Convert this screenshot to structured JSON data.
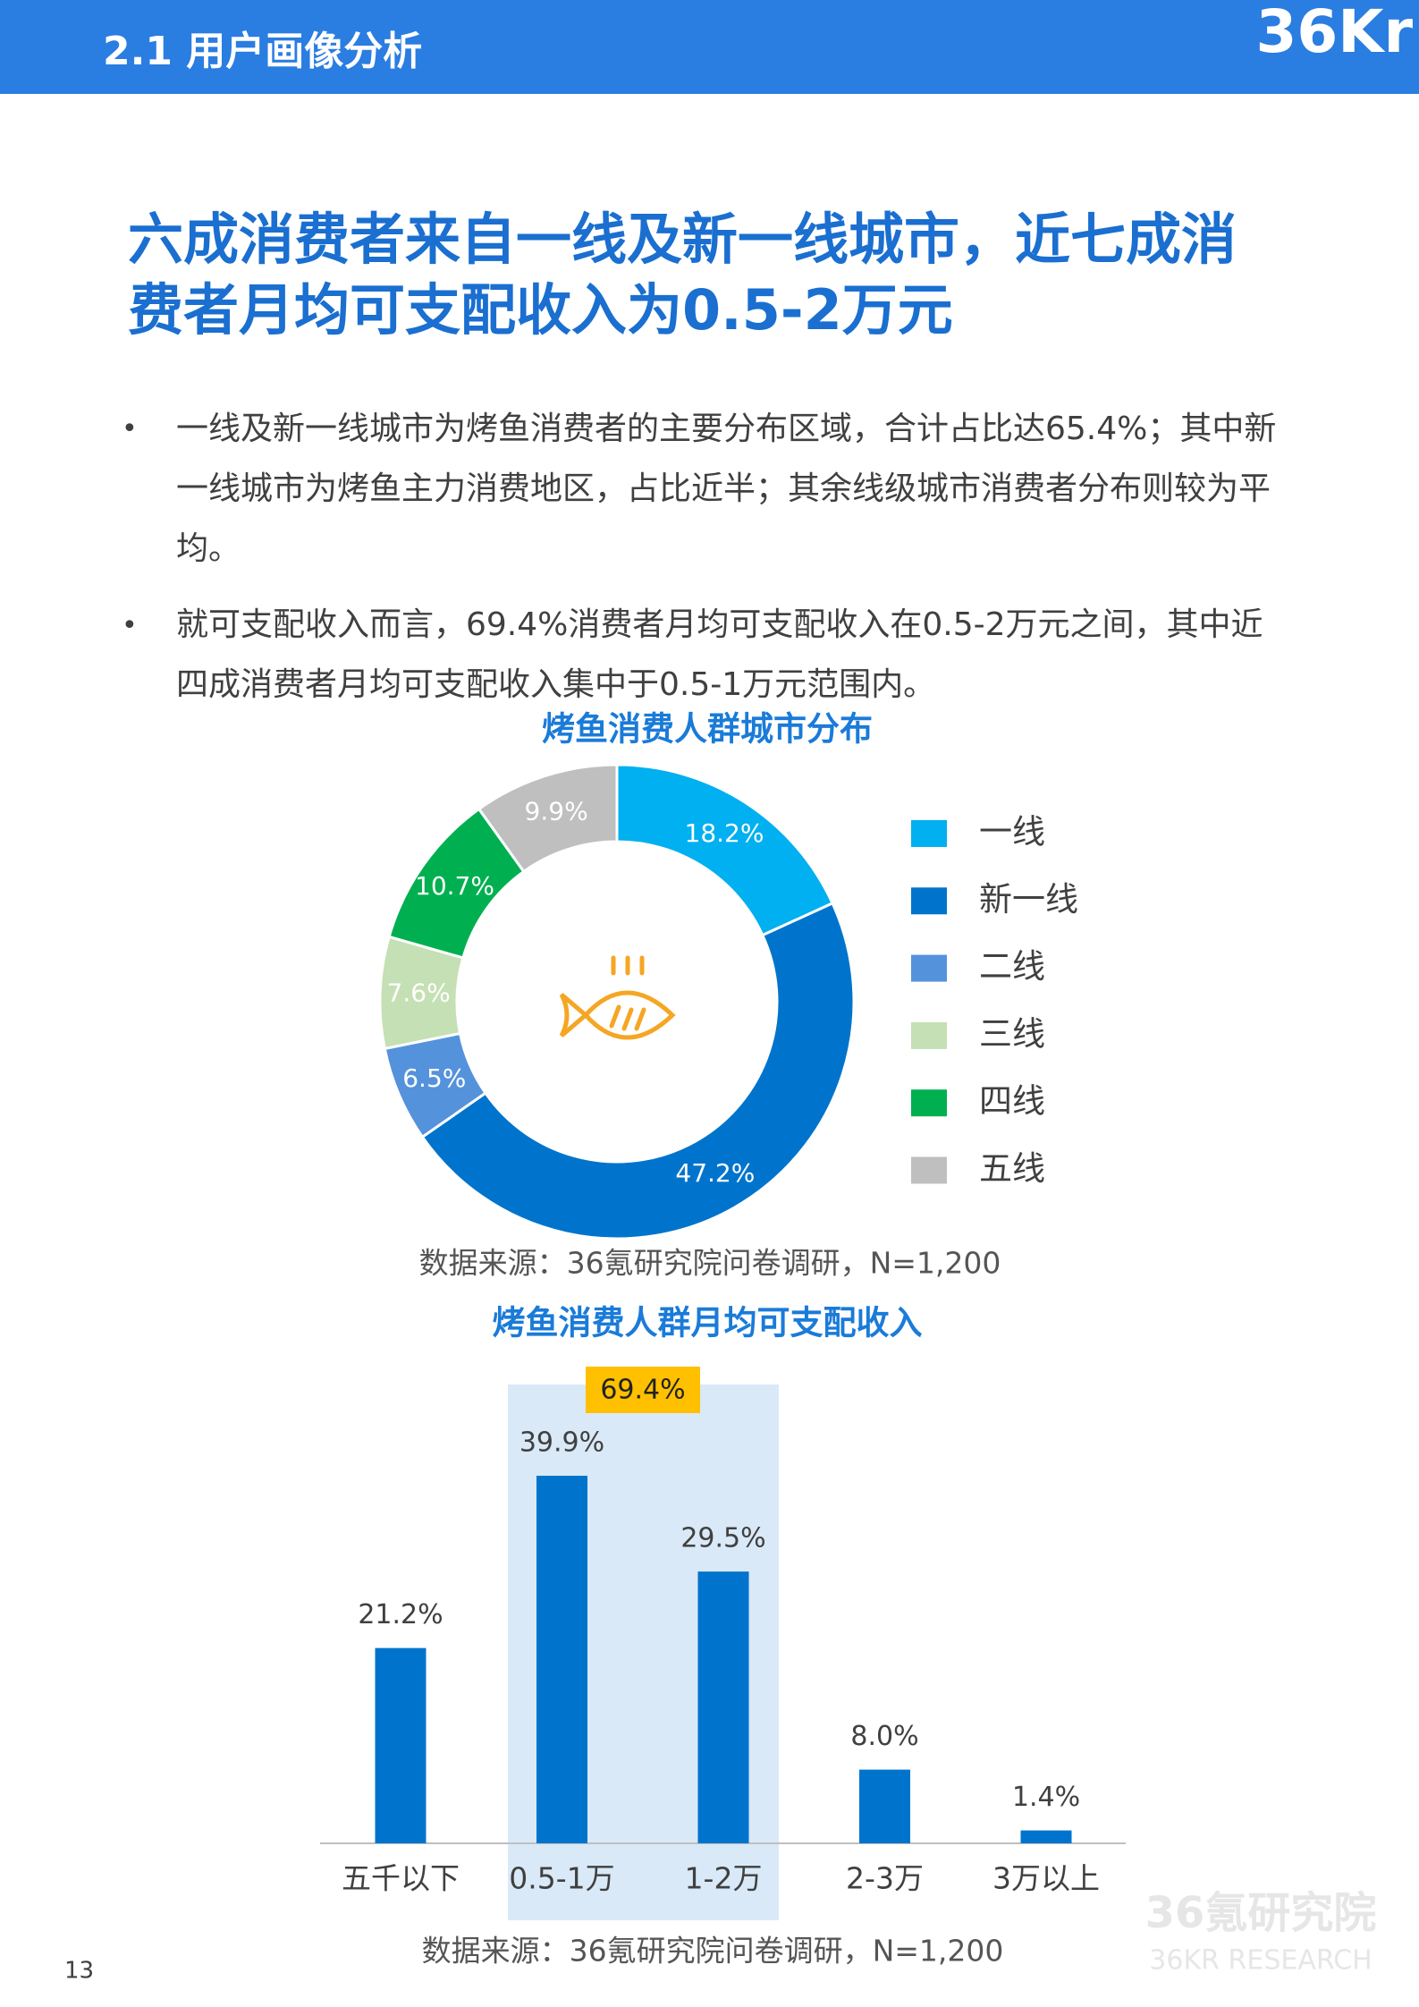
{
  "header": {
    "title": "2.1 用户画像分析",
    "logo": "36Kr"
  },
  "headline": [
    "六成消费者来自一线及新一线城市，近七成消",
    "费者月均可支配收入为0.5-2万元"
  ],
  "bullets": [
    "一线及新一线城市为烤鱼消费者的主要分布区域，合计占比达65.4%；其中新一线城市为烤鱼主力消费地区，占比近半；其余线级城市消费者分布则较为平均。",
    "就可支配收入而言，69.4%消费者月均可支配收入在0.5-2万元之间，其中近四成消费者月均可支配收入集中于0.5-1万元范围内。"
  ],
  "chart_data": [
    {
      "type": "donut",
      "title": "烤鱼消费人群城市分布",
      "categories": [
        "一线",
        "新一线",
        "二线",
        "三线",
        "四线",
        "五线"
      ],
      "values": [
        18.2,
        47.2,
        6.5,
        7.6,
        10.7,
        9.9
      ],
      "value_labels": [
        "18.2%",
        "47.2%",
        "6.5%",
        "7.6%",
        "10.7%",
        "9.9%"
      ],
      "colors": [
        "#00b0f0",
        "#0074cc",
        "#5592dc",
        "#c5e0b4",
        "#00b050",
        "#bfbfbf"
      ],
      "legend": "right",
      "source": "数据来源：36氪研究院问卷调研，N=1,200"
    },
    {
      "type": "bar",
      "title": "烤鱼消费人群月均可支配收入",
      "categories": [
        "五千以下",
        "0.5-1万",
        "1-2万",
        "2-3万",
        "3万以上"
      ],
      "values": [
        21.2,
        39.9,
        29.5,
        8.0,
        1.4
      ],
      "value_labels": [
        "21.2%",
        "39.9%",
        "29.5%",
        "8.0%",
        "1.4%"
      ],
      "color": "#0074cc",
      "annotation": {
        "value": 69.4,
        "label": "69.4%"
      },
      "source": "数据来源：36氪研究院问卷调研，N=1,200"
    }
  ],
  "page_number": "13",
  "watermark": [
    "36氪研究院",
    "36KR RESEARCH"
  ]
}
